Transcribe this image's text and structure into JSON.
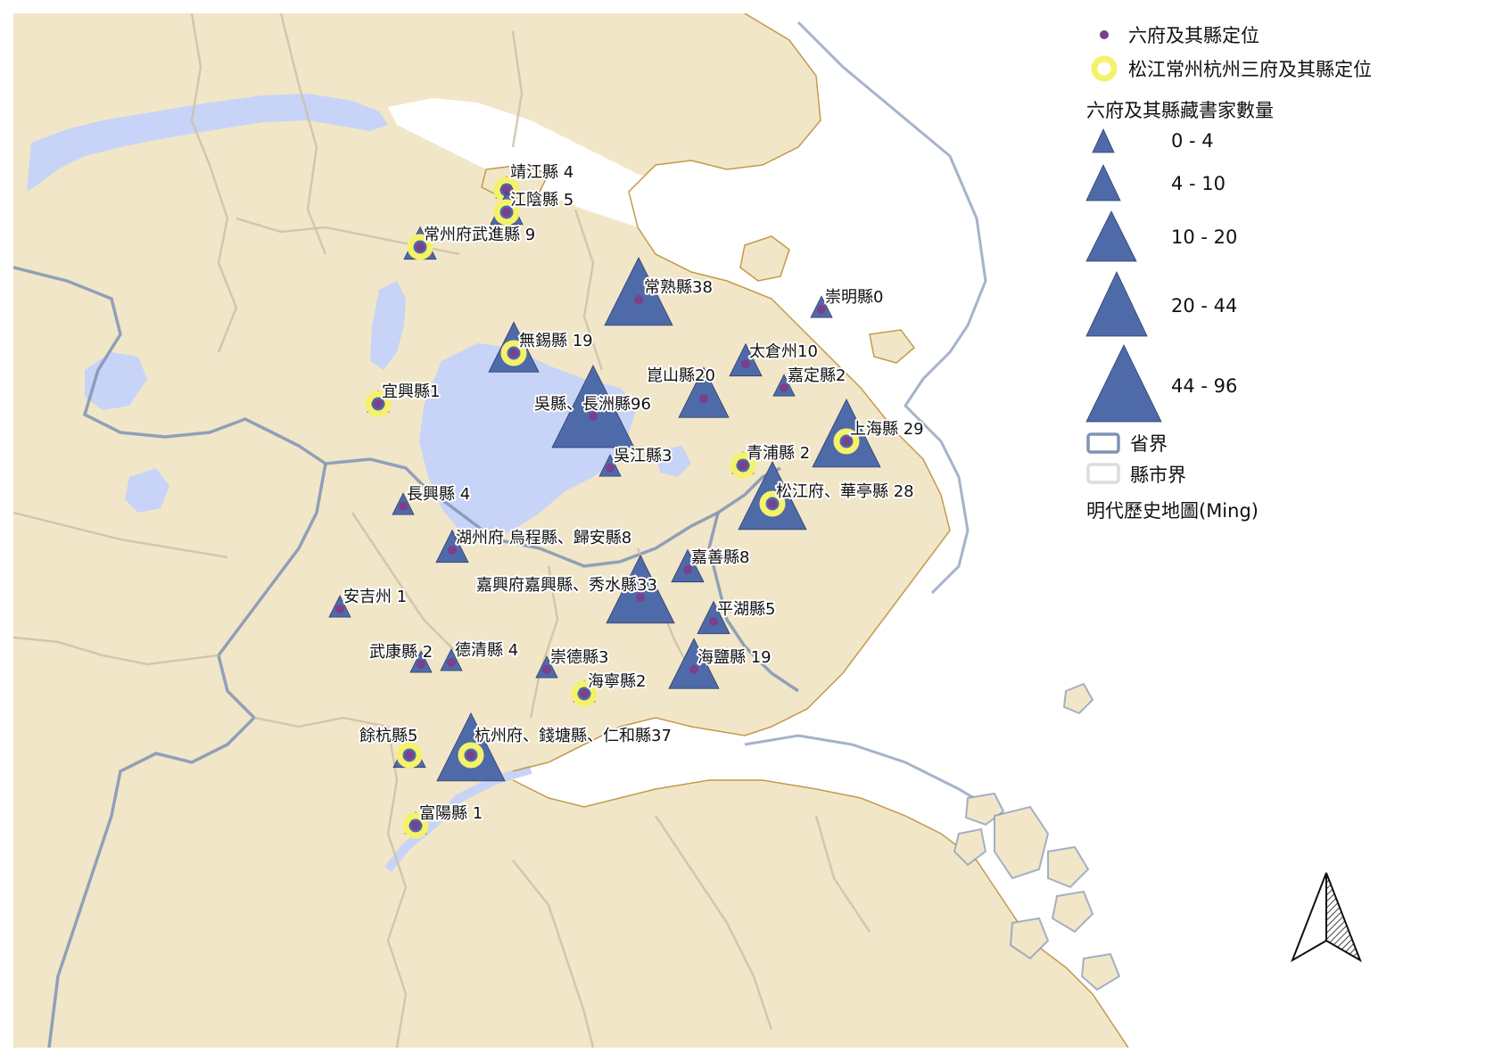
{
  "legend": {
    "dot_label": "六府及其縣定位",
    "ring_label": "松江常州杭州三府及其縣定位",
    "size_title": "六府及其縣藏書家數量",
    "size_classes": [
      "0 - 4",
      "4 - 10",
      "10 - 20",
      "20 - 44",
      "44 - 96"
    ],
    "province_label": "省界",
    "county_label": "縣市界",
    "basemap_label": "明代歷史地圖(Ming)"
  },
  "colors": {
    "land": "#f2e4c3",
    "land_fill": "#f4dfb0",
    "water": "#c7d4f7",
    "triangle": "#4f6aa8",
    "dot": "#7b3f8c",
    "ring": "#f5f26a",
    "province_border": "#7f93b5",
    "county_border": "#c9b99a",
    "coast": "#c39a4a",
    "sea": "#ffffff"
  },
  "north_arrow": "north-arrow-icon",
  "places": [
    {
      "label": "靖江縣 4",
      "count": 4,
      "ring": true
    },
    {
      "label": "江陰縣 5",
      "count": 5,
      "ring": true
    },
    {
      "label": "常州府武進縣 9",
      "count": 9,
      "ring": true
    },
    {
      "label": "常熟縣38",
      "count": 38,
      "ring": false
    },
    {
      "label": "崇明縣0",
      "count": 0,
      "ring": false
    },
    {
      "label": "無錫縣 19",
      "count": 19,
      "ring": true
    },
    {
      "label": "太倉州10",
      "count": 10,
      "ring": false
    },
    {
      "label": "崑山縣20",
      "count": 20,
      "ring": false
    },
    {
      "label": "嘉定縣2",
      "count": 2,
      "ring": false
    },
    {
      "label": "宜興縣1",
      "count": 1,
      "ring": true
    },
    {
      "label": "吳縣、長洲縣96",
      "count": 96,
      "ring": false
    },
    {
      "label": "上海縣 29",
      "count": 29,
      "ring": true
    },
    {
      "label": "青浦縣 2",
      "count": 2,
      "ring": true
    },
    {
      "label": "吳江縣3",
      "count": 3,
      "ring": false
    },
    {
      "label": "松江府、華亭縣 28",
      "count": 28,
      "ring": true
    },
    {
      "label": "長興縣 4",
      "count": 4,
      "ring": false
    },
    {
      "label": "湖州府 烏程縣、歸安縣8",
      "count": 8,
      "ring": false
    },
    {
      "label": "嘉善縣8",
      "count": 8,
      "ring": false
    },
    {
      "label": "嘉興府嘉興縣、秀水縣33",
      "count": 33,
      "ring": false
    },
    {
      "label": "安吉州 1",
      "count": 1,
      "ring": false
    },
    {
      "label": "平湖縣5",
      "count": 5,
      "ring": false
    },
    {
      "label": "武康縣 2",
      "count": 2,
      "ring": false
    },
    {
      "label": "德清縣 4",
      "count": 4,
      "ring": false
    },
    {
      "label": "崇德縣3",
      "count": 3,
      "ring": false
    },
    {
      "label": "海鹽縣 19",
      "count": 19,
      "ring": false
    },
    {
      "label": "海寧縣2",
      "count": 2,
      "ring": true
    },
    {
      "label": "餘杭縣5",
      "count": 5,
      "ring": true
    },
    {
      "label": "杭州府、錢塘縣、仁和縣37",
      "count": 37,
      "ring": true
    },
    {
      "label": "富陽縣 1",
      "count": 1,
      "ring": true
    }
  ]
}
